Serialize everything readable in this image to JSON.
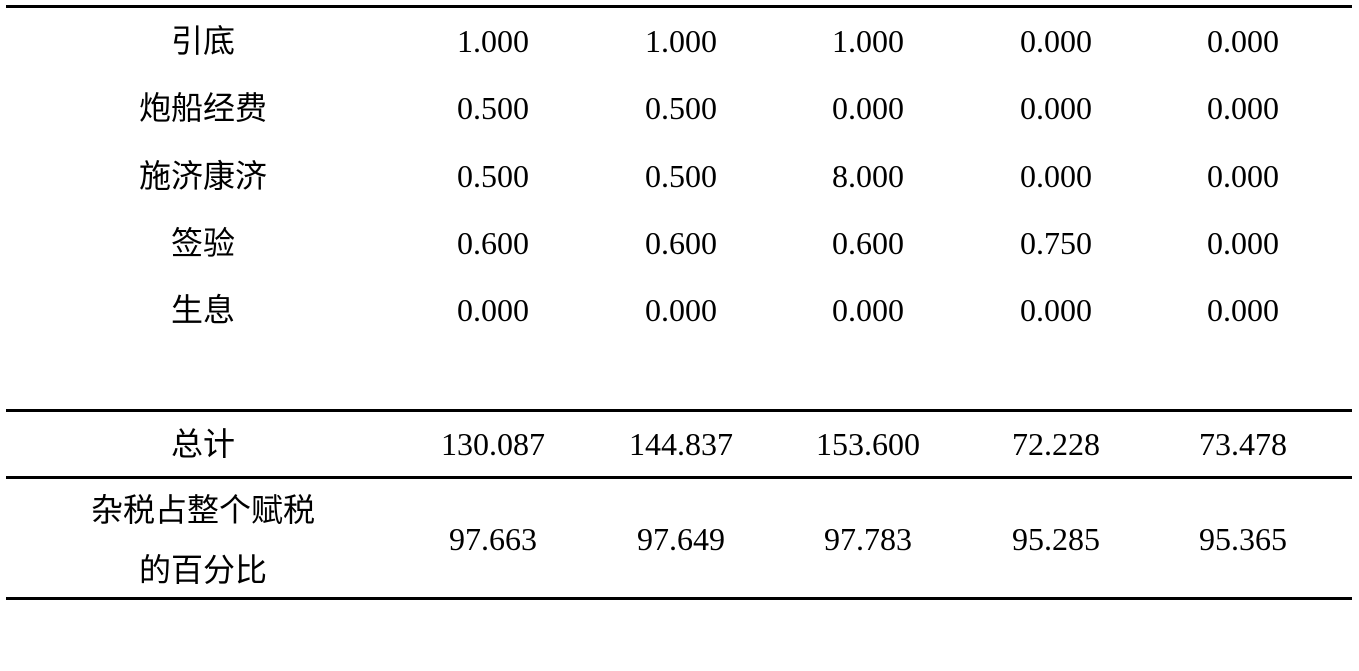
{
  "table": {
    "rows": [
      {
        "label": "引底",
        "values": [
          "1.000",
          "1.000",
          "1.000",
          "0.000",
          "0.000"
        ]
      },
      {
        "label": "炮船经费",
        "values": [
          "0.500",
          "0.500",
          "0.000",
          "0.000",
          "0.000"
        ]
      },
      {
        "label": "施济康济",
        "values": [
          "0.500",
          "0.500",
          "8.000",
          "0.000",
          "0.000"
        ]
      },
      {
        "label": "签验",
        "values": [
          "0.600",
          "0.600",
          "0.600",
          "0.750",
          "0.000"
        ]
      },
      {
        "label": "生息",
        "values": [
          "0.000",
          "0.000",
          "0.000",
          "0.000",
          "0.000"
        ]
      }
    ],
    "total": {
      "label": "总计",
      "values": [
        "130.087",
        "144.837",
        "153.600",
        "72.228",
        "73.478"
      ]
    },
    "percent": {
      "label_line1": "杂税占整个赋税",
      "label_line2": "的百分比",
      "values": [
        "97.663",
        "97.649",
        "97.783",
        "95.285",
        "95.365"
      ]
    }
  }
}
